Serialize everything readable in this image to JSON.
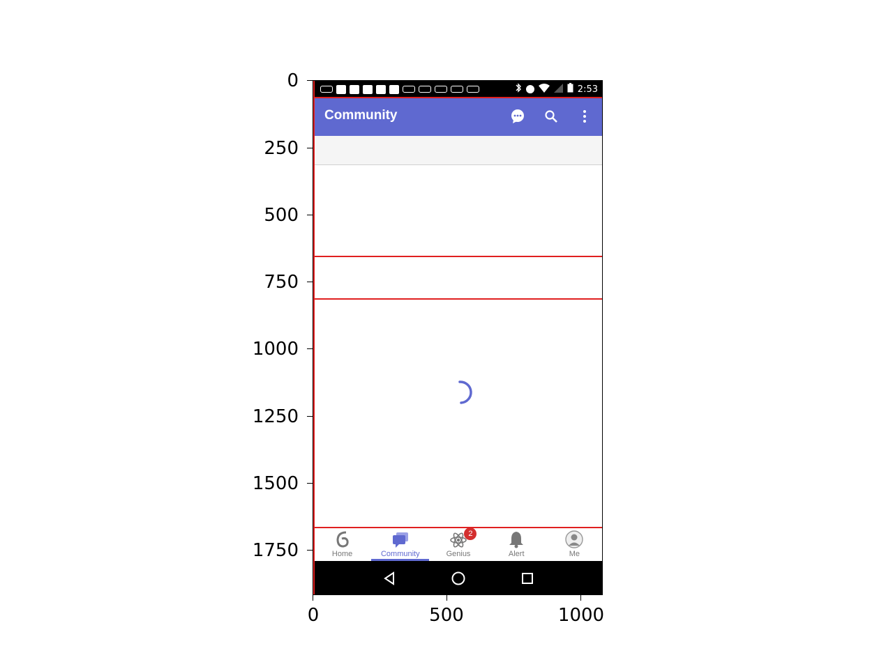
{
  "axes": {
    "y_ticks": [
      "0",
      "250",
      "500",
      "750",
      "1000",
      "1250",
      "1500",
      "1750"
    ],
    "x_ticks": [
      "0",
      "500",
      "1000"
    ]
  },
  "status_bar": {
    "time": "2:53"
  },
  "app_bar": {
    "title": "Community",
    "actions": [
      "chat-icon",
      "search-icon",
      "overflow-menu-icon"
    ],
    "color": "#5f69d0"
  },
  "bottom_nav": {
    "items": [
      {
        "label": "Home",
        "icon": "home-logo-icon",
        "active": false
      },
      {
        "label": "Community",
        "icon": "community-chat-icon",
        "active": true
      },
      {
        "label": "Genius",
        "icon": "atom-icon",
        "active": false,
        "badge": "2"
      },
      {
        "label": "Alert",
        "icon": "bell-icon",
        "active": false
      },
      {
        "label": "Me",
        "icon": "person-icon",
        "active": false
      }
    ]
  },
  "system_nav": [
    "back-icon",
    "home-circle-icon",
    "recents-square-icon"
  ],
  "overlay_color": "#e02020"
}
